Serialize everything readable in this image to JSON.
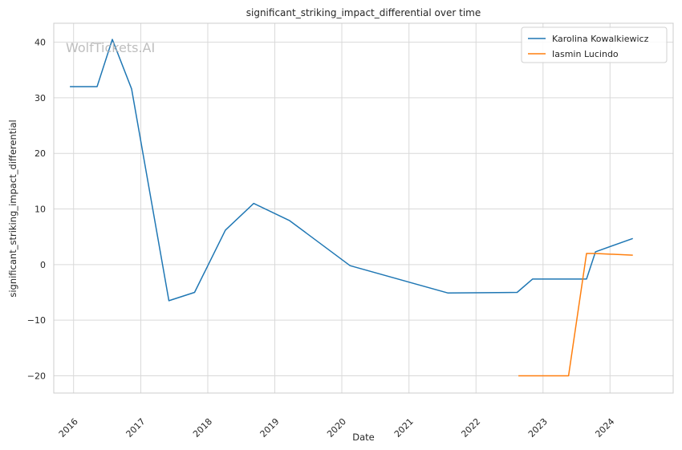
{
  "chart_data": {
    "type": "line",
    "title": "significant_striking_impact_differential over time",
    "xlabel": "Date",
    "ylabel": "significant_striking_impact_differential",
    "watermark": "WolfTickets.AI",
    "x_ticks": [
      "2016",
      "2017",
      "2018",
      "2019",
      "2020",
      "2021",
      "2022",
      "2023",
      "2024"
    ],
    "y_ticks": [
      -20,
      -10,
      0,
      10,
      20,
      30,
      40
    ],
    "xlim": [
      "2015-09-15",
      "2024-12-10"
    ],
    "ylim": [
      -23.1,
      43.4
    ],
    "grid": true,
    "legend_position": "top-right",
    "colors": {
      "Karolina Kowalkiewicz": "#1f77b4",
      "Iasmin Lucindo": "#ff7f0e"
    },
    "series": [
      {
        "name": "Karolina Kowalkiewicz",
        "color": "#1f77b4",
        "x": [
          "2015-12-12",
          "2016-05-08",
          "2016-07-30",
          "2016-11-12",
          "2017-06-03",
          "2017-10-21",
          "2018-04-07",
          "2018-09-08",
          "2019-03-23",
          "2020-02-15",
          "2021-07-31",
          "2022-08-13",
          "2022-11-05",
          "2023-05-20",
          "2023-08-26",
          "2023-10-14",
          "2024-05-04"
        ],
        "values": [
          32.0,
          32.0,
          40.5,
          31.6,
          -6.5,
          -5.0,
          6.2,
          11.0,
          7.9,
          -0.2,
          -5.1,
          -5.0,
          -2.6,
          -2.6,
          -2.6,
          2.3,
          4.7
        ]
      },
      {
        "name": "Iasmin Lucindo",
        "color": "#ff7f0e",
        "x": [
          "2022-08-20",
          "2023-05-20",
          "2023-08-26",
          "2023-10-14",
          "2024-05-04"
        ],
        "values": [
          -20.0,
          -20.0,
          2.0,
          2.0,
          1.7
        ]
      }
    ]
  }
}
